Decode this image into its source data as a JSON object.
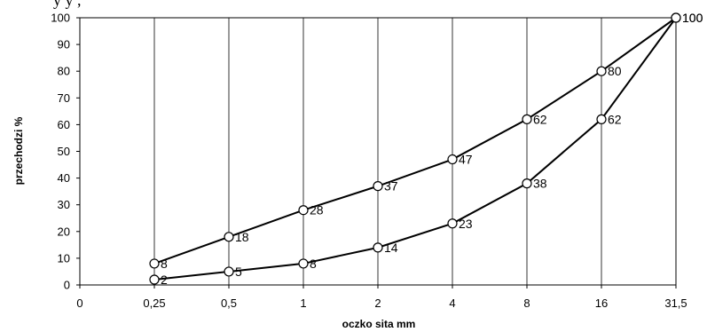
{
  "header_fragment": "y                                  y     ,",
  "chart_data": {
    "type": "line",
    "xlabel": "oczko sita mm",
    "ylabel": "przechodzi %",
    "categories": [
      "0",
      "0,25",
      "0,5",
      "1",
      "2",
      "4",
      "8",
      "16",
      "31,5"
    ],
    "ylim": [
      0,
      100
    ],
    "yticks": [
      0,
      10,
      20,
      30,
      40,
      50,
      60,
      70,
      80,
      90,
      100
    ],
    "grid": "vertical",
    "series": [
      {
        "points": [
          {
            "x": "0,25",
            "y": 8
          },
          {
            "x": "0,5",
            "y": 18
          },
          {
            "x": "1",
            "y": 28
          },
          {
            "x": "2",
            "y": 37
          },
          {
            "x": "4",
            "y": 47
          },
          {
            "x": "8",
            "y": 62
          },
          {
            "x": "16",
            "y": 80
          },
          {
            "x": "31,5",
            "y": 100
          }
        ]
      },
      {
        "points": [
          {
            "x": "0,25",
            "y": 2
          },
          {
            "x": "0,5",
            "y": 5
          },
          {
            "x": "1",
            "y": 8
          },
          {
            "x": "2",
            "y": 14
          },
          {
            "x": "4",
            "y": 23
          },
          {
            "x": "8",
            "y": 38
          },
          {
            "x": "16",
            "y": 62
          },
          {
            "x": "31,5",
            "y": 100
          }
        ]
      }
    ]
  }
}
